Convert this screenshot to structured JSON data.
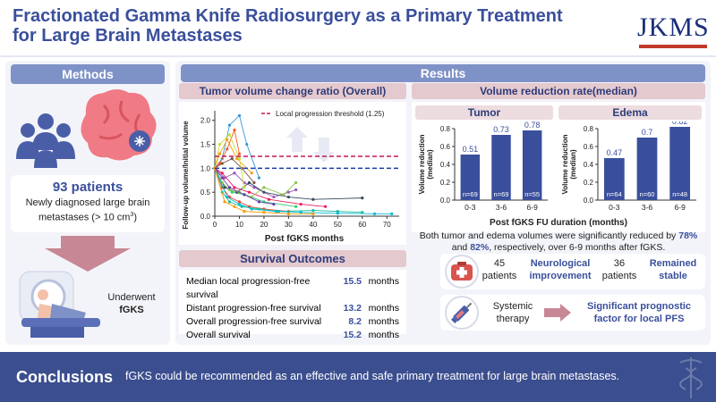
{
  "header": {
    "title": "Fractionated Gamma Knife Radiosurgery as a Primary Treatment for Large Brain Metastases",
    "logo": "JKMS"
  },
  "methods": {
    "heading": "Methods",
    "patients": "93 patients",
    "description_prefix": "Newly diagnosed large brain metastases (> 10 cm",
    "description_sup": "3",
    "description_suffix": ")",
    "treatment_prefix": "Underwent",
    "treatment": "fGKS"
  },
  "results": {
    "heading": "Results",
    "tumor_volume_title": "Tumor volume change ratio (Overall)",
    "volume_reduction_title": "Volume reduction rate(median)"
  },
  "chart_data": [
    {
      "type": "line",
      "title": "Tumor volume change ratio (Overall)",
      "xlabel": "Post fGKS months",
      "ylabel": "Follow-up volume/Initial volume",
      "xlim": [
        0,
        75
      ],
      "ylim": [
        0,
        2.2
      ],
      "xticks": [
        "0",
        "10",
        "20",
        "30",
        "40",
        "50",
        "60",
        "70"
      ],
      "yticks": [
        "0.0",
        "0.5",
        "1.0",
        "1.5",
        "2.0"
      ],
      "legend": "Local progression threshold (1.25)",
      "threshold_lines": [
        1.25,
        1.0
      ],
      "series": [
        {
          "name": "p1",
          "x": [
            0,
            3,
            6,
            10,
            14,
            20,
            30
          ],
          "y": [
            1.0,
            0.6,
            0.4,
            0.3,
            0.2,
            0.15,
            0.1
          ]
        },
        {
          "name": "p2",
          "x": [
            0,
            3,
            6,
            10,
            13,
            18
          ],
          "y": [
            1.0,
            1.2,
            1.9,
            2.1,
            1.5,
            0.8
          ]
        },
        {
          "name": "p3",
          "x": [
            0,
            3,
            7,
            12,
            20,
            33
          ],
          "y": [
            1.0,
            0.7,
            0.5,
            0.45,
            0.3,
            0.2
          ]
        },
        {
          "name": "p4",
          "x": [
            0,
            4,
            8,
            12,
            16,
            24,
            30,
            33
          ],
          "y": [
            1.0,
            0.8,
            0.9,
            0.7,
            0.6,
            0.4,
            0.5,
            0.55
          ]
        },
        {
          "name": "p5",
          "x": [
            0,
            2,
            5,
            9,
            15
          ],
          "y": [
            1.0,
            1.3,
            1.6,
            1.2,
            0.9
          ]
        },
        {
          "name": "p6",
          "x": [
            0,
            3,
            6,
            11,
            18,
            26,
            40,
            50,
            60
          ],
          "y": [
            1.0,
            0.5,
            0.3,
            0.2,
            0.15,
            0.1,
            0.12,
            0.1,
            0.08
          ]
        },
        {
          "name": "p7",
          "x": [
            0,
            3,
            8,
            14,
            22,
            35,
            45
          ],
          "y": [
            1.0,
            0.9,
            0.6,
            0.5,
            0.35,
            0.25,
            0.2
          ]
        },
        {
          "name": "p8",
          "x": [
            0,
            4,
            9,
            14,
            20,
            30,
            40,
            60
          ],
          "y": [
            1.0,
            0.6,
            0.5,
            0.7,
            0.5,
            0.4,
            0.35,
            0.38
          ]
        },
        {
          "name": "p9",
          "x": [
            0,
            2,
            5,
            8,
            10
          ],
          "y": [
            1.0,
            1.1,
            1.4,
            1.8,
            1.3
          ]
        },
        {
          "name": "p10",
          "x": [
            0,
            3,
            6,
            10,
            15,
            20,
            28,
            33
          ],
          "y": [
            1.0,
            0.7,
            0.55,
            0.5,
            0.4,
            0.6,
            0.45,
            0.7
          ]
        },
        {
          "name": "p11",
          "x": [
            0,
            5,
            10,
            15,
            25,
            35,
            50,
            65,
            72
          ],
          "y": [
            1.0,
            0.4,
            0.25,
            0.15,
            0.1,
            0.08,
            0.06,
            0.05,
            0.05
          ]
        },
        {
          "name": "p12",
          "x": [
            0,
            3,
            7,
            11,
            16
          ],
          "y": [
            1.0,
            1.1,
            1.2,
            1.0,
            0.7
          ]
        },
        {
          "name": "p13",
          "x": [
            0,
            3,
            6,
            12,
            18,
            24
          ],
          "y": [
            1.0,
            0.8,
            0.6,
            0.45,
            0.3,
            0.25
          ]
        },
        {
          "name": "p14",
          "x": [
            0,
            2,
            6,
            10,
            12
          ],
          "y": [
            1.0,
            1.5,
            1.7,
            1.2,
            0.6
          ]
        },
        {
          "name": "p15",
          "x": [
            0,
            4,
            8,
            12,
            20,
            30,
            40
          ],
          "y": [
            1.0,
            0.3,
            0.2,
            0.1,
            0.08,
            0.05,
            0.05
          ]
        }
      ]
    },
    {
      "type": "bar",
      "title": "Tumor",
      "xlabel": "Post fGKS FU duration (months)",
      "ylabel": "Volume reduction (median)",
      "categories": [
        "0-3",
        "3-6",
        "6-9"
      ],
      "values": [
        0.51,
        0.73,
        0.78
      ],
      "n_labels": [
        "n=69",
        "n=69",
        "n=55"
      ],
      "ylim": [
        0,
        0.8
      ],
      "yticks": [
        "0.0",
        "0.2",
        "0.4",
        "0.6",
        "0.8"
      ]
    },
    {
      "type": "bar",
      "title": "Edema",
      "xlabel": "Post fGKS FU duration (months)",
      "ylabel": "Volume reduction (median)",
      "categories": [
        "0-3",
        "3-6",
        "6-9"
      ],
      "values": [
        0.47,
        0.7,
        0.82
      ],
      "n_labels": [
        "n=64",
        "n=60",
        "n=48"
      ],
      "ylim": [
        0,
        0.8
      ],
      "yticks": [
        "0.0",
        "0.2",
        "0.4",
        "0.6",
        "0.8"
      ]
    }
  ],
  "reduction_text": {
    "line1": "Both tumor and edema volumes were significantly reduced by",
    "pct1": "78%",
    "and": "and",
    "pct2": "82%",
    "line2_suffix": ", respectively, over 6-9 months after fGKS."
  },
  "survival": {
    "heading": "Survival Outcomes",
    "rows": [
      {
        "label": "Median local progression-free survival",
        "value": "15.5",
        "unit": "months"
      },
      {
        "label": "Distant progression-free survival",
        "value": "13.2",
        "unit": "months"
      },
      {
        "label": "Overall progression-free survival",
        "value": "8.2",
        "unit": "months"
      },
      {
        "label": "Overall survival",
        "value": "15.2",
        "unit": "months"
      }
    ]
  },
  "neuro": {
    "count1": "45",
    "patients1": "patients",
    "label1": "Neurological improvement",
    "count2": "36",
    "patients2": "patients",
    "label2": "Remained stable"
  },
  "systemic": {
    "label": "Systemic therapy",
    "result": "Significant prognostic factor for local PFS"
  },
  "conclusions": {
    "heading": "Conclusions",
    "text": "fGKS could be recommended as an effective and safe primary treatment for large brain metastases."
  },
  "colors": {
    "primary": "#3a4f9c",
    "accent_red": "#c0392b",
    "bar": "#3a4f9c",
    "threshold_red": "#c2185b",
    "threshold_blue": "#1a3aa8"
  }
}
